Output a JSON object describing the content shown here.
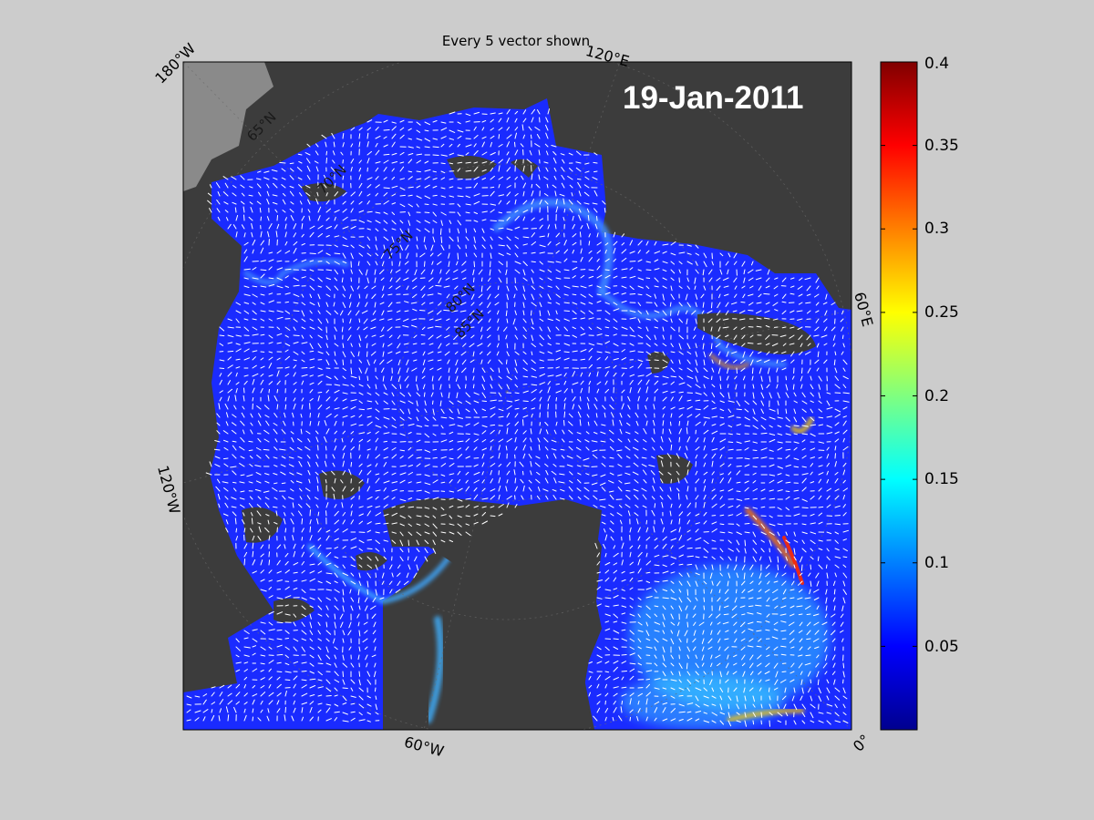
{
  "title": "Every 5 vector shown",
  "date": "19-Jan-2011",
  "map": {
    "projection": "polar stereographic (north)",
    "longitude_labels": [
      "180°W",
      "120°E",
      "60°E",
      "0°",
      "60°W",
      "120°W"
    ],
    "latitude_labels": [
      "65°N",
      "70°N",
      "75°N",
      "80°N",
      "85°N"
    ],
    "colors": {
      "ocean_base": "#1a2bff",
      "land": "#3c3c3c",
      "land_light": "#8a8a8a",
      "vectors": "#ffffff",
      "background": "#cccccc"
    }
  },
  "colorbar": {
    "colormap": "jet",
    "range": [
      0,
      0.4
    ],
    "ticks": [
      "0.05",
      "0.1",
      "0.15",
      "0.2",
      "0.25",
      "0.3",
      "0.35",
      "0.4"
    ],
    "tick_values": [
      0.05,
      0.1,
      0.15,
      0.2,
      0.25,
      0.3,
      0.35,
      0.4
    ]
  }
}
